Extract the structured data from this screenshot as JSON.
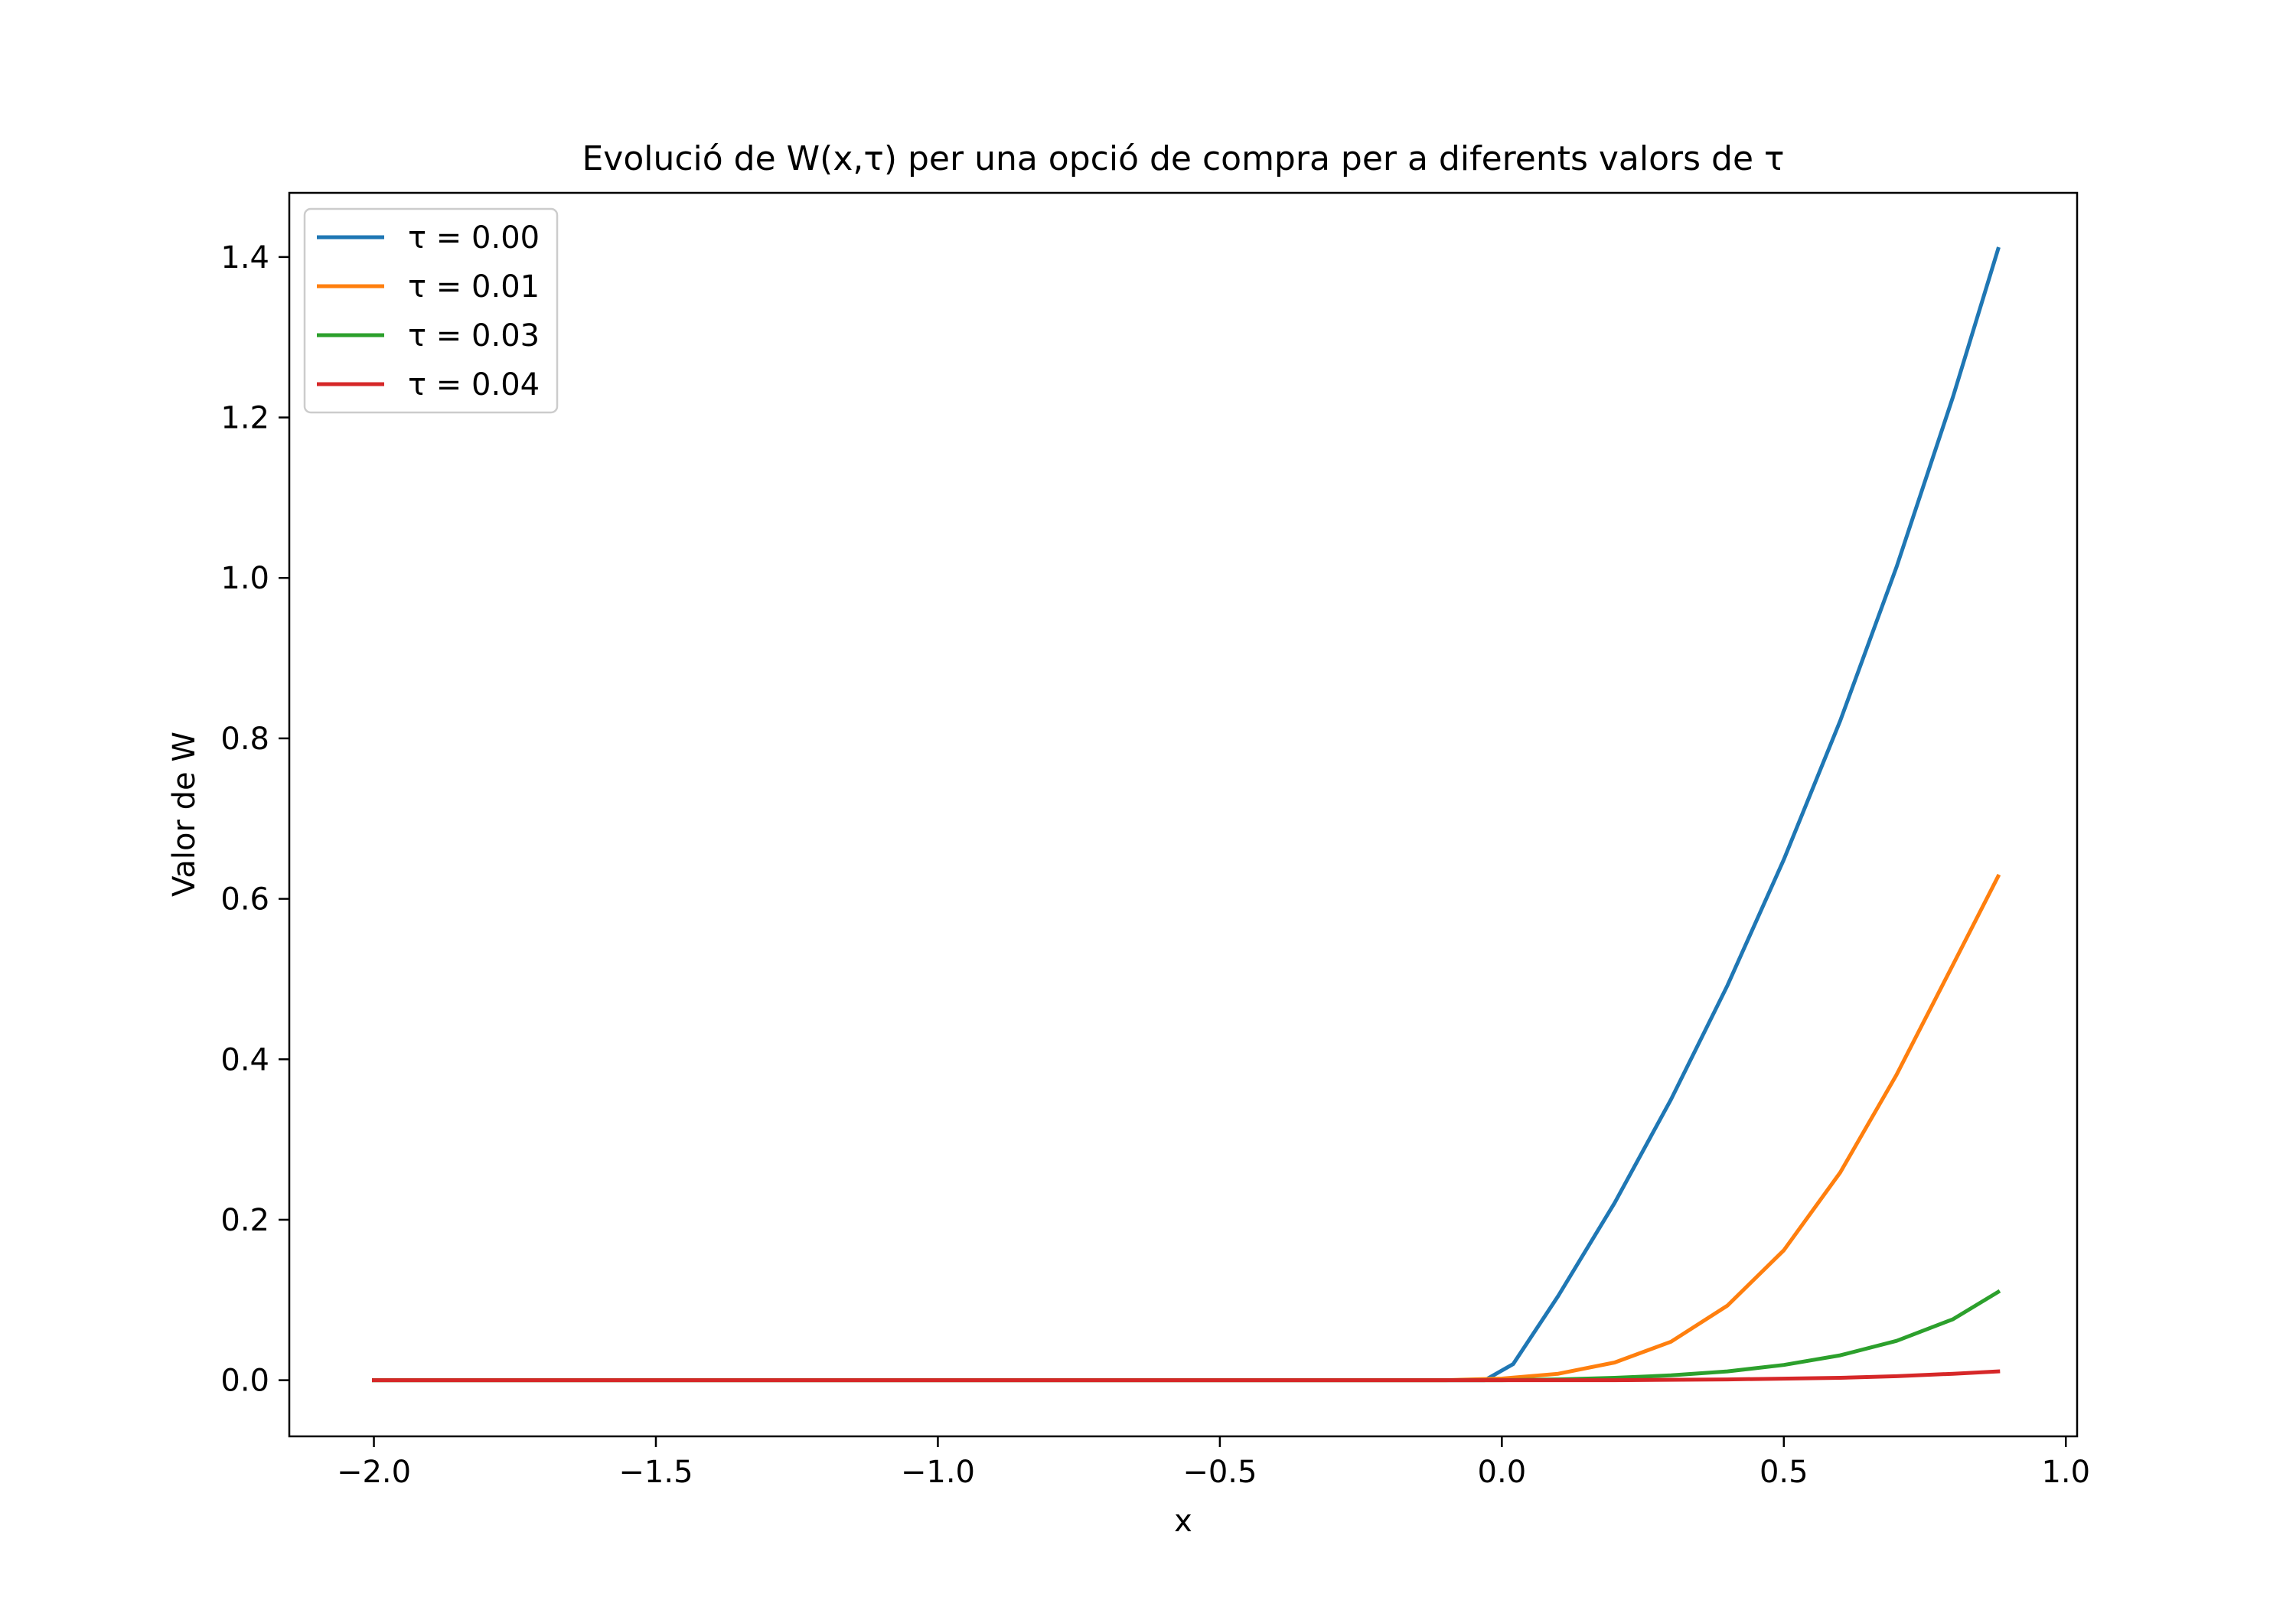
{
  "chart_data": {
    "type": "line",
    "title": "Evolució de W(x,τ) per una opció de compra per a diferents valors de τ",
    "xlabel": "x",
    "ylabel": "Valor de W",
    "xlim": [
      -2.15,
      1.02
    ],
    "ylim": [
      -0.07,
      1.48
    ],
    "xticks": [
      -2.0,
      -1.5,
      -1.0,
      -0.5,
      0.0,
      0.5,
      1.0
    ],
    "xtick_labels": [
      "−2.0",
      "−1.5",
      "−1.0",
      "−0.5",
      "0.0",
      "0.5",
      "1.0"
    ],
    "yticks": [
      0.0,
      0.2,
      0.4,
      0.6,
      0.8,
      1.0,
      1.2,
      1.4
    ],
    "ytick_labels": [
      "0.0",
      "0.2",
      "0.4",
      "0.6",
      "0.8",
      "1.0",
      "1.2",
      "1.4"
    ],
    "grid": false,
    "legend": "top-left",
    "series": [
      {
        "name": "τ = 0.00",
        "color": "#1f77b4",
        "x": [
          -2.0,
          -0.03,
          0.02,
          0.1,
          0.2,
          0.3,
          0.4,
          0.5,
          0.6,
          0.7,
          0.8,
          0.88
        ],
        "y": [
          0.0,
          0.0,
          0.02,
          0.105,
          0.221,
          0.35,
          0.492,
          0.649,
          0.822,
          1.014,
          1.226,
          1.41
        ]
      },
      {
        "name": "τ = 0.01",
        "color": "#ff7f0e",
        "x": [
          -2.0,
          -0.1,
          0.0,
          0.1,
          0.2,
          0.3,
          0.4,
          0.5,
          0.6,
          0.7,
          0.8,
          0.88
        ],
        "y": [
          0.0,
          0.0,
          0.002,
          0.008,
          0.022,
          0.048,
          0.093,
          0.162,
          0.259,
          0.381,
          0.518,
          0.628
        ]
      },
      {
        "name": "τ = 0.03",
        "color": "#2ca02c",
        "x": [
          -2.0,
          0.0,
          0.1,
          0.2,
          0.3,
          0.4,
          0.5,
          0.6,
          0.7,
          0.8,
          0.88
        ],
        "y": [
          0.0,
          0.0,
          0.001,
          0.003,
          0.006,
          0.011,
          0.019,
          0.031,
          0.049,
          0.076,
          0.11
        ]
      },
      {
        "name": "τ = 0.04",
        "color": "#d62728",
        "x": [
          -2.0,
          0.2,
          0.4,
          0.6,
          0.7,
          0.8,
          0.88
        ],
        "y": [
          0.0,
          0.0,
          0.001,
          0.003,
          0.005,
          0.008,
          0.011
        ]
      }
    ]
  }
}
